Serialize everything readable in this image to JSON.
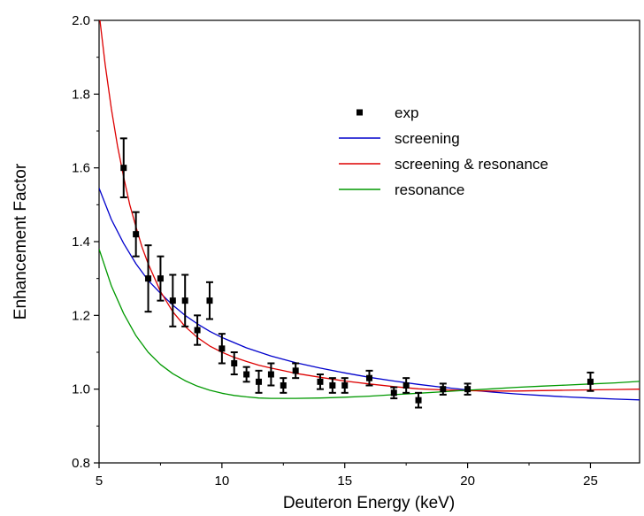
{
  "chart_data": {
    "type": "scatter",
    "xlabel": "Deuteron Energy (keV)",
    "ylabel": "Enhancement Factor",
    "xlim": [
      5,
      27
    ],
    "ylim": [
      0.8,
      2.0
    ],
    "xticks": [
      5,
      10,
      15,
      20,
      25
    ],
    "xtick_labels": [
      "5",
      "10",
      "15",
      "20",
      "25"
    ],
    "yticks": [
      0.8,
      1.0,
      1.2,
      1.4,
      1.6,
      1.8,
      2.0
    ],
    "ytick_labels": [
      "0.8",
      "1.0",
      "1.2",
      "1.4",
      "1.6",
      "1.8",
      "2.0"
    ],
    "grid": false,
    "legend_position": "top-right",
    "series": [
      {
        "name": "exp",
        "kind": "points-with-errorbars",
        "color": "#000000",
        "points": [
          {
            "x": 6.0,
            "y": 1.6,
            "err": 0.08
          },
          {
            "x": 6.5,
            "y": 1.42,
            "err": 0.06
          },
          {
            "x": 7.0,
            "y": 1.3,
            "err": 0.09
          },
          {
            "x": 7.5,
            "y": 1.3,
            "err": 0.06
          },
          {
            "x": 8.0,
            "y": 1.24,
            "err": 0.07
          },
          {
            "x": 8.5,
            "y": 1.24,
            "err": 0.07
          },
          {
            "x": 9.0,
            "y": 1.16,
            "err": 0.04
          },
          {
            "x": 9.5,
            "y": 1.24,
            "err": 0.05
          },
          {
            "x": 10.0,
            "y": 1.11,
            "err": 0.04
          },
          {
            "x": 10.5,
            "y": 1.07,
            "err": 0.03
          },
          {
            "x": 11.0,
            "y": 1.04,
            "err": 0.02
          },
          {
            "x": 11.5,
            "y": 1.02,
            "err": 0.03
          },
          {
            "x": 12.0,
            "y": 1.04,
            "err": 0.03
          },
          {
            "x": 12.5,
            "y": 1.01,
            "err": 0.02
          },
          {
            "x": 13.0,
            "y": 1.05,
            "err": 0.02
          },
          {
            "x": 14.0,
            "y": 1.02,
            "err": 0.02
          },
          {
            "x": 14.5,
            "y": 1.01,
            "err": 0.02
          },
          {
            "x": 15.0,
            "y": 1.01,
            "err": 0.02
          },
          {
            "x": 16.0,
            "y": 1.03,
            "err": 0.02
          },
          {
            "x": 17.0,
            "y": 0.99,
            "err": 0.015
          },
          {
            "x": 17.5,
            "y": 1.01,
            "err": 0.02
          },
          {
            "x": 18.0,
            "y": 0.97,
            "err": 0.02
          },
          {
            "x": 19.0,
            "y": 1.0,
            "err": 0.015
          },
          {
            "x": 20.0,
            "y": 1.0,
            "err": 0.015
          },
          {
            "x": 25.0,
            "y": 1.02,
            "err": 0.025
          }
        ]
      },
      {
        "name": "screening",
        "kind": "line",
        "color": "#0000cc",
        "x": [
          5.0,
          5.5,
          6.0,
          6.5,
          7.0,
          7.5,
          8.0,
          8.5,
          9.0,
          9.5,
          10.0,
          11.0,
          12.0,
          13.0,
          14.0,
          15.0,
          16.0,
          17.0,
          18.0,
          19.0,
          20.0,
          21.0,
          22.0,
          23.0,
          24.0,
          25.0,
          26.0,
          27.0
        ],
        "y": [
          1.545,
          1.46,
          1.395,
          1.34,
          1.295,
          1.26,
          1.228,
          1.2,
          1.177,
          1.157,
          1.14,
          1.112,
          1.09,
          1.072,
          1.057,
          1.044,
          1.032,
          1.022,
          1.013,
          1.005,
          0.998,
          0.992,
          0.987,
          0.983,
          0.979,
          0.976,
          0.973,
          0.971
        ]
      },
      {
        "name": "screening & resonance",
        "kind": "line",
        "color": "#dd0000",
        "x": [
          5.0,
          5.25,
          5.5,
          5.75,
          6.0,
          6.25,
          6.5,
          6.75,
          7.0,
          7.5,
          8.0,
          8.5,
          9.0,
          9.5,
          10.0,
          10.5,
          11.0,
          11.5,
          12.0,
          12.5,
          13.0,
          14.0,
          15.0,
          16.0,
          17.0,
          18.0,
          19.0,
          20.0,
          21.0,
          22.0,
          23.0,
          24.0,
          25.0,
          26.0,
          27.0
        ],
        "y": [
          2.02,
          1.88,
          1.76,
          1.66,
          1.575,
          1.5,
          1.44,
          1.385,
          1.34,
          1.265,
          1.21,
          1.17,
          1.14,
          1.117,
          1.1,
          1.086,
          1.075,
          1.065,
          1.057,
          1.05,
          1.043,
          1.032,
          1.022,
          1.014,
          1.007,
          1.001,
          0.998,
          0.996,
          0.995,
          0.995,
          0.996,
          0.997,
          0.998,
          0.999,
          1.0
        ]
      },
      {
        "name": "resonance",
        "kind": "line",
        "color": "#009900",
        "x": [
          5.0,
          5.5,
          6.0,
          6.5,
          7.0,
          7.5,
          8.0,
          8.5,
          9.0,
          9.5,
          10.0,
          10.5,
          11.0,
          11.5,
          12.0,
          13.0,
          14.0,
          15.0,
          16.0,
          17.0,
          18.0,
          19.0,
          20.0,
          21.0,
          22.0,
          23.0,
          24.0,
          25.0,
          26.0,
          27.0
        ],
        "y": [
          1.38,
          1.28,
          1.205,
          1.145,
          1.1,
          1.067,
          1.042,
          1.023,
          1.008,
          0.997,
          0.989,
          0.983,
          0.979,
          0.976,
          0.975,
          0.975,
          0.976,
          0.978,
          0.981,
          0.985,
          0.989,
          0.993,
          0.997,
          1.001,
          1.005,
          1.008,
          1.011,
          1.014,
          1.017,
          1.021
        ]
      }
    ]
  }
}
